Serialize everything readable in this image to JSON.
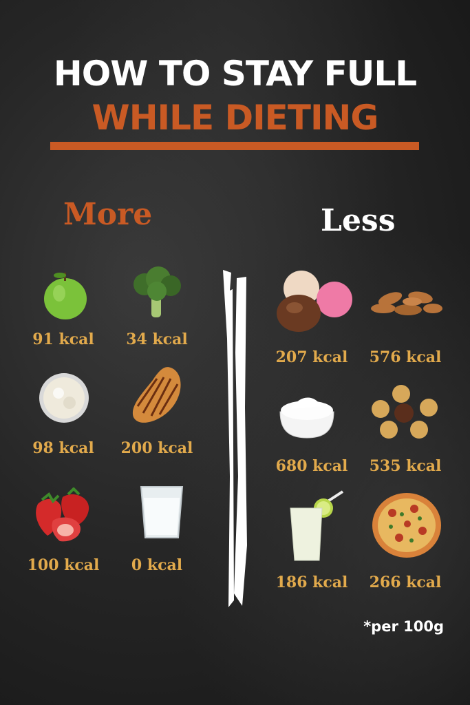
{
  "title": {
    "line1": "HOW TO STAY FULL",
    "line2": "WHILE DIETING"
  },
  "colors": {
    "accent": "#c95a24",
    "kcal": "#e2aa4c",
    "text": "#ffffff",
    "background": "#262626"
  },
  "columns": {
    "more": {
      "heading": "More",
      "items": [
        {
          "icon": "apple-icon",
          "kcal": "91 kcal"
        },
        {
          "icon": "broccoli-icon",
          "kcal": "34 kcal"
        },
        {
          "icon": "rice-bowl-icon",
          "kcal": "98 kcal"
        },
        {
          "icon": "grilled-chicken-icon",
          "kcal": "200 kcal"
        },
        {
          "icon": "strawberries-icon",
          "kcal": "100 kcal"
        },
        {
          "icon": "water-glass-icon",
          "kcal": "0 kcal"
        }
      ]
    },
    "less": {
      "heading": "Less",
      "items": [
        {
          "icon": "ice-cream-icon",
          "kcal": "207 kcal"
        },
        {
          "icon": "almonds-icon",
          "kcal": "576 kcal"
        },
        {
          "icon": "cream-bowl-icon",
          "kcal": "680 kcal"
        },
        {
          "icon": "chocolates-icon",
          "kcal": "535 kcal"
        },
        {
          "icon": "lemonade-icon",
          "kcal": "186 kcal"
        },
        {
          "icon": "pizza-icon",
          "kcal": "266 kcal"
        }
      ]
    }
  },
  "footnote": "*per 100g"
}
